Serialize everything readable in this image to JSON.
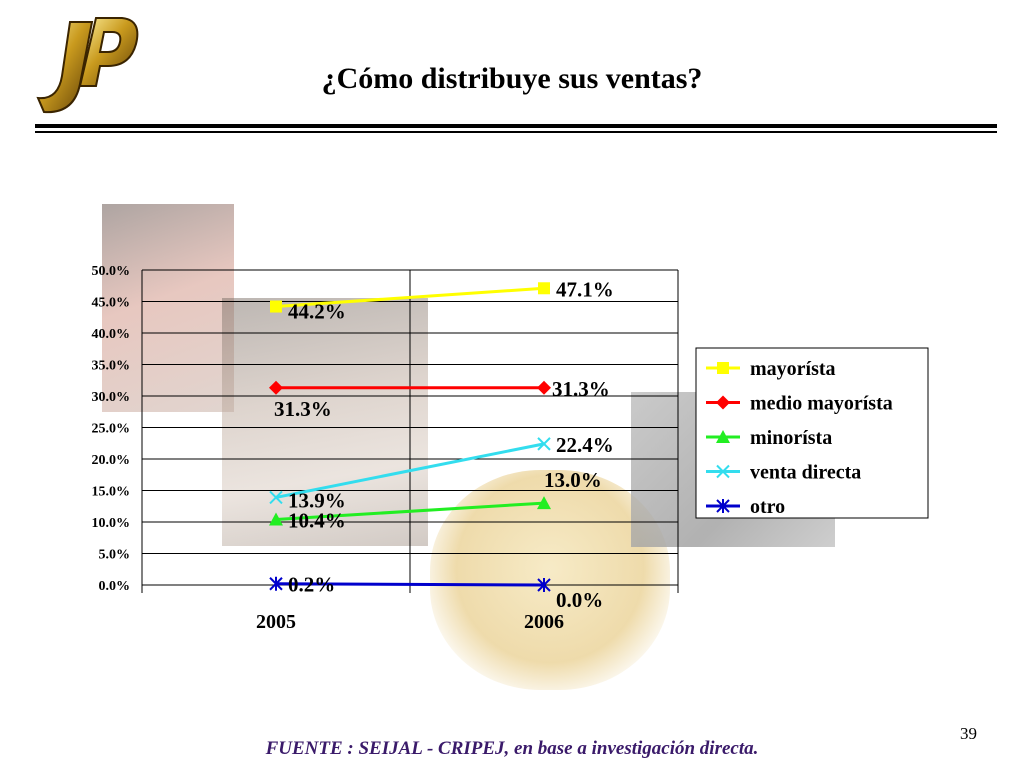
{
  "slide": {
    "title": "¿Cómo distribuye sus ventas?",
    "source": "FUENTE :  SEIJAL - CRIPEJ,  en base a investigación directa.",
    "page_number": "39",
    "logo_text": "JP"
  },
  "chart_data": {
    "type": "line",
    "categories": [
      "2005",
      "2006"
    ],
    "ylim": [
      0,
      50
    ],
    "y_ticks": [
      "0.0%",
      "5.0%",
      "10.0%",
      "15.0%",
      "20.0%",
      "25.0%",
      "30.0%",
      "35.0%",
      "40.0%",
      "45.0%",
      "50.0%"
    ],
    "grid": true,
    "legend_position": "right",
    "series": [
      {
        "name": "mayorísta",
        "values": [
          44.2,
          47.1
        ],
        "labels": [
          "44.2%",
          "47.1%"
        ],
        "color": "#ffff00",
        "marker": "square"
      },
      {
        "name": "medio mayorísta",
        "values": [
          31.3,
          31.3
        ],
        "labels": [
          "31.3%",
          "31.3%"
        ],
        "color": "#ff0000",
        "marker": "diamond"
      },
      {
        "name": "minorísta",
        "values": [
          10.4,
          13.0
        ],
        "labels": [
          "10.4%",
          "13.0%"
        ],
        "color": "#22ee22",
        "marker": "triangle"
      },
      {
        "name": "venta directa",
        "values": [
          13.9,
          22.4
        ],
        "labels": [
          "13.9%",
          "22.4%"
        ],
        "color": "#33ddee",
        "marker": "x"
      },
      {
        "name": "otro",
        "values": [
          0.2,
          0.0
        ],
        "labels": [
          "0.2%",
          "0.0%"
        ],
        "color": "#0000cc",
        "marker": "star"
      }
    ]
  }
}
